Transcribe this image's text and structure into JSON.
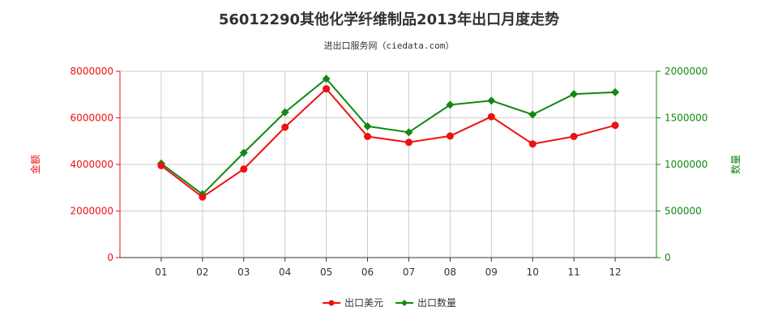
{
  "header": {
    "title": "56012290其他化学纤维制品2013年出口月度走势",
    "subtitle": "进出口服务网（ciedata.com）"
  },
  "colors": {
    "amount": "#ee1111",
    "quantity": "#118811",
    "axis_left": "#ee1111",
    "axis_right": "#118811",
    "grid": "#cccccc"
  },
  "chart_data": {
    "type": "line",
    "categories": [
      "01",
      "02",
      "03",
      "04",
      "05",
      "06",
      "07",
      "08",
      "09",
      "10",
      "11",
      "12"
    ],
    "y_left": {
      "label": "金额",
      "ylim": [
        0,
        8000000
      ],
      "ticks": [
        "0",
        "2000000",
        "4000000",
        "6000000",
        "8000000"
      ],
      "tick_values": [
        0,
        2000000,
        4000000,
        6000000,
        8000000
      ]
    },
    "y_right": {
      "label": "数量",
      "ylim": [
        0,
        2000000
      ],
      "ticks": [
        "0",
        "500000",
        "1000000",
        "1500000",
        "2000000"
      ],
      "tick_values": [
        0,
        500000,
        1000000,
        1500000,
        2000000
      ]
    },
    "series": [
      {
        "name": "出口美元",
        "axis": "left",
        "values": [
          3950000,
          2600000,
          3800000,
          5600000,
          7250000,
          5200000,
          4950000,
          5220000,
          6050000,
          4880000,
          5200000,
          5680000
        ]
      },
      {
        "name": "出口数量",
        "axis": "right",
        "values": [
          1010000,
          680000,
          1125000,
          1560000,
          1920000,
          1410000,
          1345000,
          1640000,
          1685000,
          1535000,
          1755000,
          1775000
        ]
      }
    ],
    "grid": true,
    "legend": "bottom-center"
  }
}
